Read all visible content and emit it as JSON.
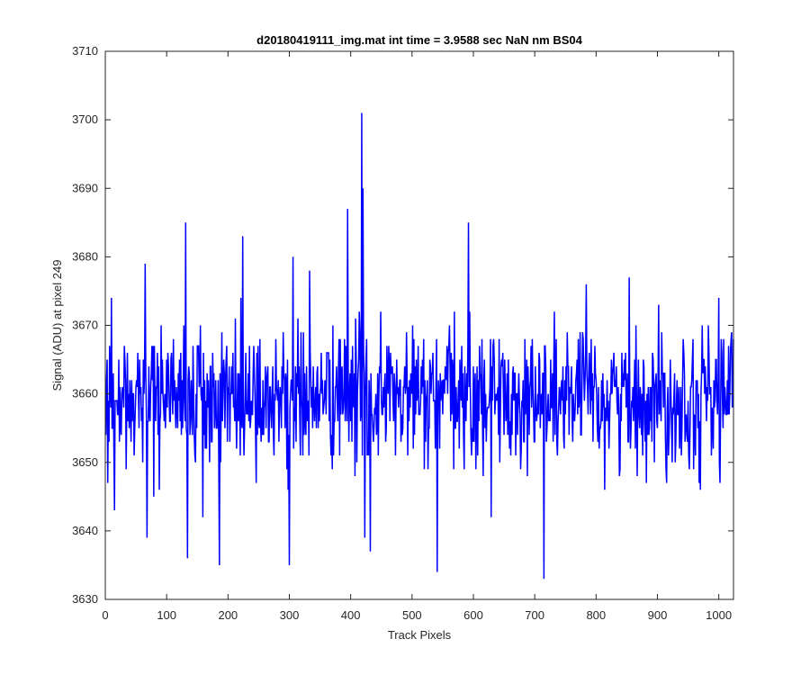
{
  "chart_data": {
    "type": "line",
    "title": "d20180419111_img.mat int time = 3.9588 sec  NaN nm BS04",
    "xlabel": "Track Pixels",
    "ylabel": "Signal (ADU) at pixel 249",
    "xlim": [
      0,
      1024
    ],
    "ylim": [
      3630,
      3710
    ],
    "xticks": [
      0,
      100,
      200,
      300,
      400,
      500,
      600,
      700,
      800,
      900,
      1000
    ],
    "yticks": [
      3630,
      3640,
      3650,
      3660,
      3670,
      3680,
      3690,
      3700,
      3710
    ],
    "xtick_labels": [
      "0",
      "100",
      "200",
      "300",
      "400",
      "500",
      "600",
      "700",
      "800",
      "900",
      "1000"
    ],
    "ytick_labels": [
      "3630",
      "3640",
      "3650",
      "3660",
      "3670",
      "3680",
      "3690",
      "3700",
      "3710"
    ],
    "grid": false,
    "series_color": "#0000ff",
    "series": [
      {
        "x_start": 1,
        "x_step": 1,
        "mean": 3659.5,
        "noise_std": 5.2,
        "notable_points": [
          {
            "x": 4,
            "y": 3647
          },
          {
            "x": 10,
            "y": 3674
          },
          {
            "x": 65,
            "y": 3679
          },
          {
            "x": 68,
            "y": 3639
          },
          {
            "x": 131,
            "y": 3685
          },
          {
            "x": 134,
            "y": 3636
          },
          {
            "x": 186,
            "y": 3635
          },
          {
            "x": 224,
            "y": 3683
          },
          {
            "x": 300,
            "y": 3635
          },
          {
            "x": 306,
            "y": 3680
          },
          {
            "x": 395,
            "y": 3687
          },
          {
            "x": 418,
            "y": 3701
          },
          {
            "x": 420,
            "y": 3690
          },
          {
            "x": 423,
            "y": 3639
          },
          {
            "x": 432,
            "y": 3637
          },
          {
            "x": 541,
            "y": 3634
          },
          {
            "x": 592,
            "y": 3685
          },
          {
            "x": 715,
            "y": 3633
          },
          {
            "x": 1000,
            "y": 3674
          }
        ]
      }
    ]
  }
}
